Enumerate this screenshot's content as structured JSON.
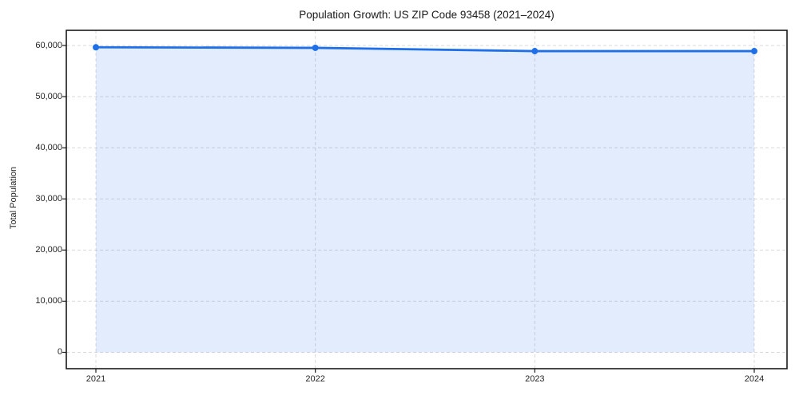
{
  "chart_data": {
    "type": "line",
    "title": "Population Growth: US ZIP Code 93458 (2021–2024)",
    "xlabel": "",
    "ylabel": "Total Population",
    "x": [
      2021,
      2022,
      2023,
      2024
    ],
    "xtick_labels": [
      "2021",
      "2022",
      "2023",
      "2024"
    ],
    "series": [
      {
        "name": "Total Population",
        "values": [
          59650,
          59540,
          58900,
          58900
        ]
      }
    ],
    "ylim": [
      0,
      60000
    ],
    "yticks": [
      0,
      10000,
      20000,
      30000,
      40000,
      50000,
      60000
    ],
    "ytick_labels": [
      "0",
      "10,000",
      "20,000",
      "30,000",
      "40,000",
      "50,000",
      "60,000"
    ],
    "grid": true,
    "grid_style": "dashed",
    "legend_position": "none",
    "area_fill": true,
    "marker": "circle",
    "colors": {
      "line": "#1f6fe8",
      "fill": "rgba(31,111,232,0.13)",
      "grid": "#d9d9d9",
      "spine": "#1a1a1a",
      "text": "#262626"
    }
  }
}
